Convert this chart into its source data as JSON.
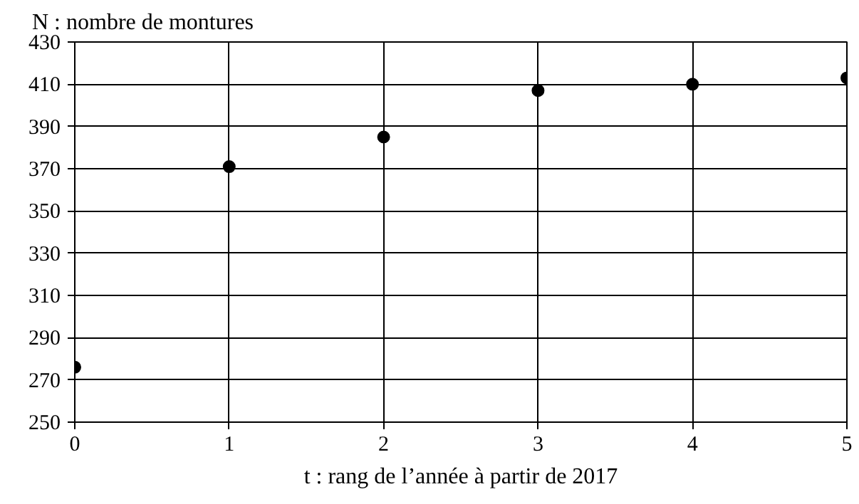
{
  "chart_data": {
    "type": "scatter",
    "ylabel": "N : nombre de montures",
    "xlabel": "t : rang de l’année à partir de 2017",
    "x": [
      0,
      1,
      2,
      3,
      4,
      5
    ],
    "values": [
      276,
      371,
      385,
      407,
      410,
      413
    ],
    "color": "#000000",
    "marker": "circle",
    "xlim": [
      0,
      5
    ],
    "xticks": [
      0,
      1,
      2,
      3,
      4,
      5
    ],
    "ylim": [
      250,
      430
    ],
    "yticks": [
      250,
      270,
      290,
      310,
      330,
      350,
      370,
      390,
      410,
      430
    ],
    "grid": true
  }
}
